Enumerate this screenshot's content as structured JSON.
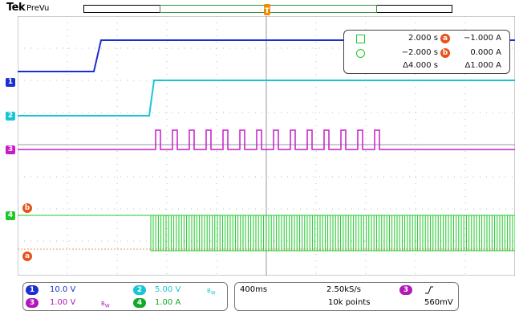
{
  "header": {
    "logo": "Tek",
    "mode": "PreVu"
  },
  "channel_markers": {
    "ch1": "1",
    "ch2": "2",
    "ch3": "3",
    "ch4": "4"
  },
  "cursor_labels": {
    "a": "a",
    "b": "b"
  },
  "readout": {
    "row1_time": "2.000 s",
    "row1_val": "−1.000 A",
    "row2_time": "−2.000 s",
    "row2_val": "0.000 A",
    "delta_time": "Δ4.000 s",
    "delta_val": "Δ1.000 A"
  },
  "channels": {
    "ch1": {
      "label": "1",
      "scale": "10.0 V",
      "color": "#1a2fd0"
    },
    "ch2": {
      "label": "2",
      "scale": "5.00 V",
      "color": "#17c6d6",
      "suffix": "B_W"
    },
    "ch3": {
      "label": "3",
      "scale": "1.00 V",
      "color": "#b018b8",
      "suffix": "B_W"
    },
    "ch4": {
      "label": "4",
      "scale": "1.00 A",
      "color": "#12a82a"
    }
  },
  "timebase": {
    "horizontal": "400ms",
    "sample_rate": "2.50kS/s",
    "points": "10k points"
  },
  "trigger": {
    "source_label": "3",
    "slope_icon": "rising-edge-icon",
    "level": "560mV"
  },
  "colors": {
    "ch1": "#1a2fd0",
    "ch2": "#17c6d6",
    "ch3": "#c81cc8",
    "ch4": "#1ec828",
    "cursor": "#e8511a",
    "trigger": "#f08a00"
  }
}
